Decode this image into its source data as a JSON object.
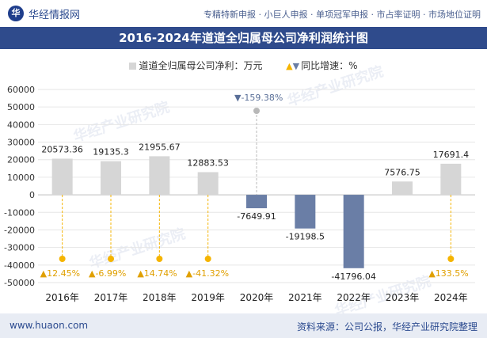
{
  "header": {
    "brand_logo_text": "华",
    "brand_name": "华经情报网",
    "links": "专精特新申报 · 小巨人申报 · 单项冠军申报 · 市占率证明 · 市场地位证明"
  },
  "watermark": {
    "text": "华经产业研究院"
  },
  "footer": {
    "website": "www.huaon.com",
    "source": "资料来源：公司公报，华经产业研究院整理"
  },
  "colors": {
    "title_bg": "#2f4b8c",
    "bar_positive": "#d6d6d6",
    "bar_negative": "#6a7ea6",
    "growth_positive": "#f5b400",
    "growth_negative": "#6a7ea6",
    "grid": "#e6e6e6"
  },
  "chart_data": {
    "type": "bar",
    "title": "2016-2024年道道全归属母公司净利润统计图",
    "categories": [
      "2016年",
      "2017年",
      "2018年",
      "2019年",
      "2020年",
      "2021年",
      "2022年",
      "2023年",
      "2024年"
    ],
    "series": [
      {
        "name": "道道全归属母公司净利：万元",
        "values": [
          20573.36,
          19135.3,
          21955.67,
          12883.53,
          -7649.91,
          -19198.5,
          -41796.04,
          7576.75,
          17691.4
        ],
        "labels": [
          "20573.36",
          "19135.3",
          "21955.67",
          "12883.53",
          "-7649.91",
          "-19198.5",
          "-41796.04",
          "7576.75",
          "17691.4"
        ]
      },
      {
        "name": "同比增速：%",
        "values": [
          12.45,
          -6.99,
          14.74,
          -41.32,
          -159.38,
          null,
          null,
          null,
          133.5
        ],
        "labels": [
          "12.45%",
          "-6.99%",
          "14.74%",
          "-41.32%",
          "-159.38%",
          "",
          "",
          "",
          "133.5%"
        ]
      }
    ],
    "yticks": [
      "60000",
      "50000",
      "40000",
      "30000",
      "20000",
      "10000",
      "0",
      "-10000",
      "-20000",
      "-30000",
      "-40000",
      "-50000"
    ],
    "ylim": [
      -50000,
      60000
    ],
    "legend": {
      "bar_label": "道道全归属母公司净利：万元",
      "line_label": "同比增速：%"
    }
  }
}
